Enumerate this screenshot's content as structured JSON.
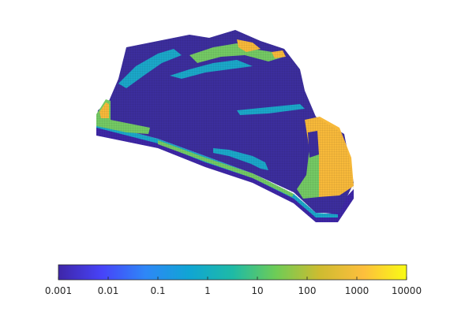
{
  "colorbar": {
    "scale": "log",
    "range": [
      0.001,
      10000
    ],
    "orientation": "horizontal",
    "placement": "bottom",
    "tick_labels": [
      "0.001",
      "0.01",
      "0.1",
      "1",
      "10",
      "100",
      "1000",
      "10000"
    ],
    "colormap": [
      "#3e26a8",
      "#4743f8",
      "#2e87f7",
      "#10a5d4",
      "#1ebaa6",
      "#6ecc56",
      "#cebc30",
      "#fdbe3d",
      "#f9fb14"
    ]
  },
  "model": {
    "type": "3D grid block",
    "dominant_color": "#3c2e9d",
    "low_color": "#3e27a6",
    "mid_color": "#1ba7c9",
    "green_color": "#74c964",
    "high_color": "#f7b93a"
  }
}
